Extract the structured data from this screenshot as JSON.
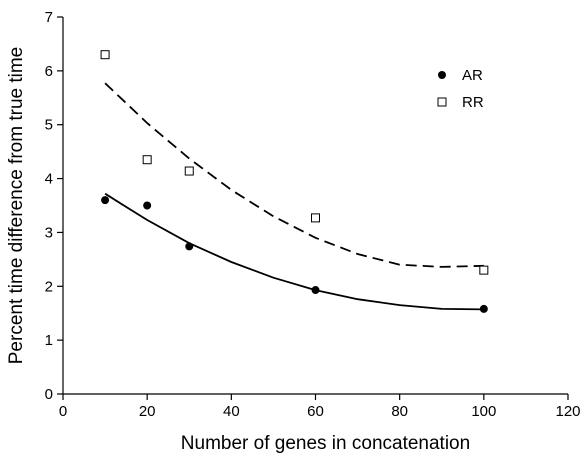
{
  "chart_data": {
    "type": "scatter",
    "xlabel": "Number of genes in concatenation",
    "ylabel": "Percent time difference from true time",
    "xlim": [
      0,
      120
    ],
    "ylim": [
      0,
      7
    ],
    "xticks": [
      0,
      20,
      40,
      60,
      80,
      100,
      120
    ],
    "yticks": [
      0,
      1,
      2,
      3,
      4,
      5,
      6,
      7
    ],
    "grid": false,
    "legend_position": "top-right",
    "series": [
      {
        "name": "AR",
        "marker": "filled-circle",
        "color": "#000000",
        "points": [
          {
            "x": 10,
            "y": 3.6
          },
          {
            "x": 20,
            "y": 3.5
          },
          {
            "x": 30,
            "y": 2.74
          },
          {
            "x": 60,
            "y": 1.93
          },
          {
            "x": 100,
            "y": 1.58
          }
        ],
        "trend": {
          "style": "solid",
          "curve": [
            {
              "x": 10,
              "y": 3.72
            },
            {
              "x": 20,
              "y": 3.23
            },
            {
              "x": 30,
              "y": 2.8
            },
            {
              "x": 40,
              "y": 2.45
            },
            {
              "x": 50,
              "y": 2.16
            },
            {
              "x": 60,
              "y": 1.93
            },
            {
              "x": 70,
              "y": 1.76
            },
            {
              "x": 80,
              "y": 1.65
            },
            {
              "x": 90,
              "y": 1.58
            },
            {
              "x": 100,
              "y": 1.57
            }
          ]
        }
      },
      {
        "name": "RR",
        "marker": "open-square",
        "color": "#000000",
        "points": [
          {
            "x": 10,
            "y": 6.3
          },
          {
            "x": 20,
            "y": 4.35
          },
          {
            "x": 30,
            "y": 4.14
          },
          {
            "x": 60,
            "y": 3.27
          },
          {
            "x": 100,
            "y": 2.3
          }
        ],
        "trend": {
          "style": "dashed",
          "curve": [
            {
              "x": 10,
              "y": 5.77
            },
            {
              "x": 20,
              "y": 5.03
            },
            {
              "x": 30,
              "y": 4.37
            },
            {
              "x": 40,
              "y": 3.79
            },
            {
              "x": 50,
              "y": 3.3
            },
            {
              "x": 60,
              "y": 2.9
            },
            {
              "x": 70,
              "y": 2.6
            },
            {
              "x": 80,
              "y": 2.4
            },
            {
              "x": 90,
              "y": 2.36
            },
            {
              "x": 100,
              "y": 2.38
            }
          ]
        }
      }
    ]
  }
}
